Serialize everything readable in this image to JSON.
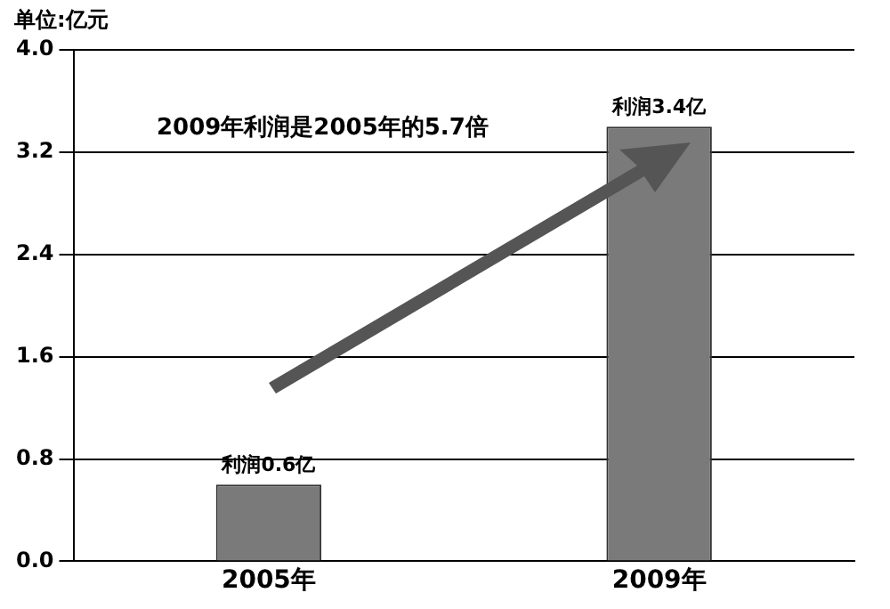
{
  "chart_data": {
    "type": "bar",
    "ylabel": "单位:亿元",
    "categories": [
      "2005年",
      "2009年"
    ],
    "values": [
      0.6,
      3.4
    ],
    "color": "#7a7a7a",
    "value_labels": [
      "利润0.6亿",
      "利润3.4亿"
    ],
    "ylim": [
      0,
      4
    ],
    "yticks": [
      {
        "value": 0,
        "label": "0.0"
      },
      {
        "value": 0.8,
        "label": "0.8"
      },
      {
        "value": 1.6,
        "label": "1.6"
      },
      {
        "value": 2.4,
        "label": "2.4"
      },
      {
        "value": 3.2,
        "label": "3.2"
      },
      {
        "value": 4,
        "label": "4.0"
      }
    ],
    "grid": "y",
    "annotations": [
      "2009年利润是2005年的5.7倍"
    ]
  }
}
